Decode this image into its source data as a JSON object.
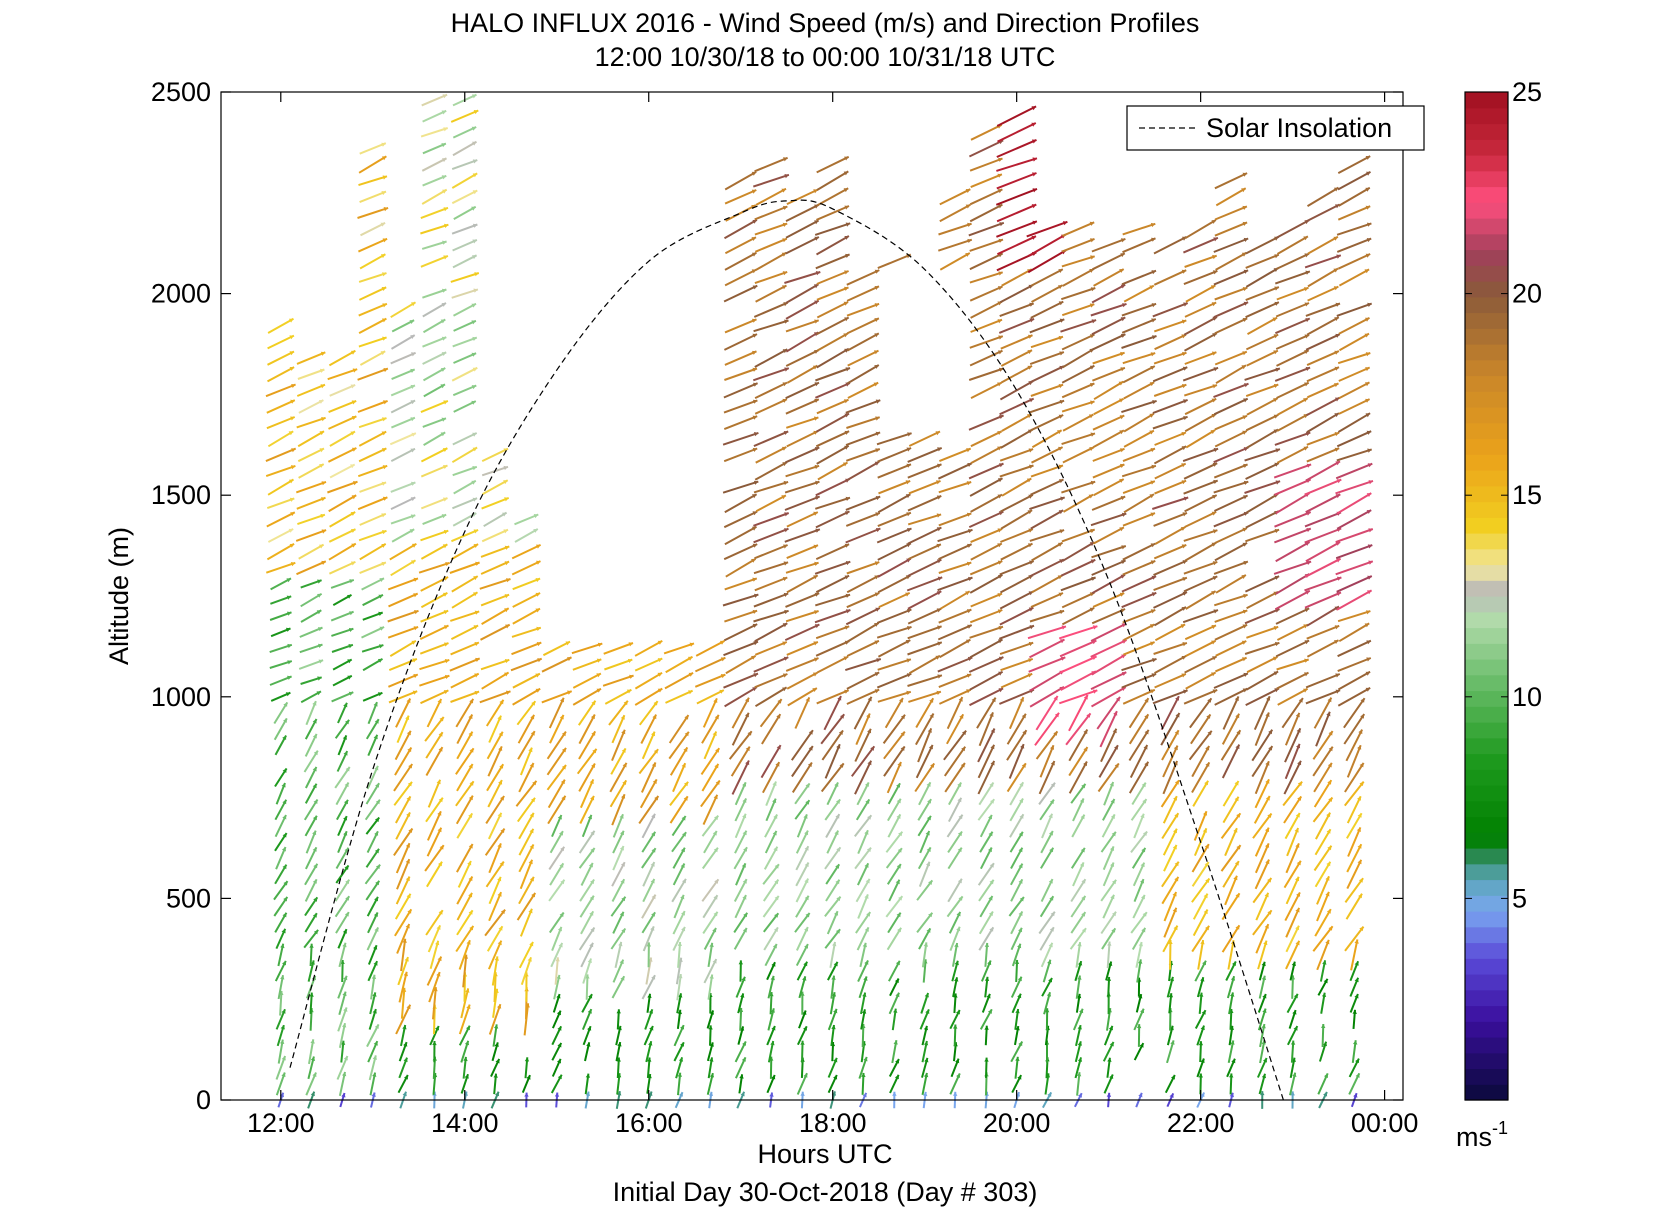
{
  "chart_data": {
    "type": "quiver",
    "title": "HALO INFLUX 2016 - Wind Speed (m/s) and Direction Profiles",
    "subtitle": "12:00 10/30/18 to 00:00 10/31/18  UTC",
    "xlabel": "Hours UTC",
    "ylabel": "Altitude (m)",
    "footer": "Initial Day 30-Oct-2018 (Day # 303)",
    "x_ticks": [
      "12:00",
      "14:00",
      "16:00",
      "18:00",
      "20:00",
      "22:00",
      "00:00"
    ],
    "xlim": [
      11.35,
      24.2
    ],
    "ylim": [
      0,
      2500
    ],
    "y_ticks": [
      "0",
      "500",
      "1000",
      "1500",
      "2000",
      "2500"
    ],
    "legend": {
      "label": "Solar Insolation",
      "position": "top-right"
    },
    "solar_insolation": {
      "style": "dashed",
      "color": "#000000",
      "x": [
        12.1,
        13.0,
        14.0,
        15.0,
        16.0,
        17.0,
        17.5,
        18.0,
        19.0,
        20.0,
        21.0,
        22.0,
        22.9
      ],
      "y": [
        80,
        820,
        1410,
        1810,
        2080,
        2200,
        2230,
        2210,
        2060,
        1760,
        1290,
        640,
        0
      ]
    },
    "colorbar": {
      "label": "ms-1",
      "label_main": "ms",
      "label_sup": "-1",
      "range": [
        0,
        25
      ],
      "ticks": [
        "5",
        "10",
        "15",
        "20",
        "25"
      ],
      "stops": [
        {
          "v": 0.0,
          "c": "#0a0a3a"
        },
        {
          "v": 2.0,
          "c": "#3b0f9e"
        },
        {
          "v": 3.5,
          "c": "#5a4ad8"
        },
        {
          "v": 4.7,
          "c": "#7aa6f0"
        },
        {
          "v": 5.5,
          "c": "#5aa6b8"
        },
        {
          "v": 6.0,
          "c": "#2e8a5a"
        },
        {
          "v": 6.5,
          "c": "#008000"
        },
        {
          "v": 8.5,
          "c": "#1f9a1f"
        },
        {
          "v": 10.5,
          "c": "#6fbf6f"
        },
        {
          "v": 12.0,
          "c": "#b5dcae"
        },
        {
          "v": 12.6,
          "c": "#b8b8b8"
        },
        {
          "v": 13.2,
          "c": "#f0e6a0"
        },
        {
          "v": 14.2,
          "c": "#f2cf20"
        },
        {
          "v": 16.0,
          "c": "#eaa21a"
        },
        {
          "v": 18.0,
          "c": "#c9862a"
        },
        {
          "v": 20.0,
          "c": "#8a5a3a"
        },
        {
          "v": 21.0,
          "c": "#a0405a"
        },
        {
          "v": 22.3,
          "c": "#ff4f7f"
        },
        {
          "v": 23.5,
          "c": "#c8283c"
        },
        {
          "v": 25.0,
          "c": "#a01020"
        }
      ]
    },
    "quiver_model": {
      "profile_times": [
        12.0,
        12.33,
        12.67,
        13.0,
        13.33,
        13.67,
        14.0,
        14.33,
        14.67,
        15.0,
        15.33,
        15.67,
        16.0,
        16.33,
        16.67,
        17.0,
        17.33,
        17.67,
        18.0,
        18.33,
        18.67,
        19.0,
        19.33,
        19.67,
        20.0,
        20.33,
        20.67,
        21.0,
        21.33,
        21.67,
        22.0,
        22.33,
        22.67,
        23.0,
        23.33,
        23.67
      ],
      "max_altitude_by_profile": [
        1950,
        1850,
        1870,
        2380,
        1960,
        2480,
        2500,
        1620,
        1460,
        1410,
        1380,
        1160,
        1150,
        1300,
        1130,
        2300,
        2320,
        2250,
        2320,
        2060,
        2100,
        2050,
        2270,
        2400,
        2460,
        2160,
        2160,
        2150,
        2160,
        2150,
        2160,
        2280,
        2150,
        2170,
        2250,
        2330
      ],
      "altitude_step_m": 40,
      "gap_region_time": [
        14.8,
        16.9
      ],
      "gap_region_altitude": [
        1150,
        2250
      ]
    }
  }
}
